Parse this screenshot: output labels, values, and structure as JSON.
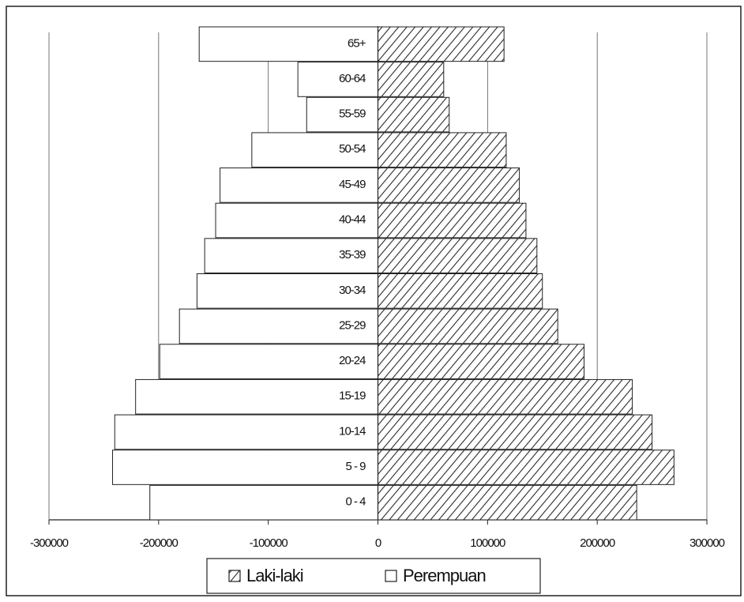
{
  "chart_data": {
    "type": "pyramid",
    "categories": [
      "0 - 4",
      "5 - 9",
      "10-14",
      "15-19",
      "20-24",
      "25-29",
      "30-34",
      "35-39",
      "40-44",
      "45-49",
      "50-54",
      "55-59",
      "60-64",
      "65+"
    ],
    "series": [
      {
        "name": "Laki-laki",
        "color": "#2a2a2a",
        "fill": "hatch",
        "values": [
          236000,
          270000,
          250000,
          232000,
          188000,
          164000,
          150000,
          145000,
          135000,
          129000,
          117000,
          65000,
          60000,
          115000
        ]
      },
      {
        "name": "Perempuan",
        "color": "#ffffff",
        "fill": "solid",
        "values": [
          -208000,
          -242000,
          -240000,
          -221000,
          -199000,
          -181000,
          -165000,
          -158000,
          -148000,
          -144000,
          -115000,
          -65000,
          -73000,
          -163000
        ]
      }
    ],
    "xlim": [
      -300000,
      300000
    ],
    "xticks": [
      -300000,
      -200000,
      -100000,
      0,
      100000,
      200000,
      300000
    ],
    "grid": true
  }
}
